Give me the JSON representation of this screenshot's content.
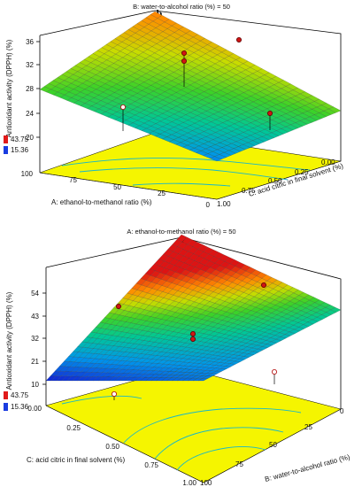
{
  "chart_data": [
    {
      "type": "surface3d",
      "panel_letter": "b",
      "title": "B: water-to-alcohol ratio (%) = 50",
      "zlabel": "Antioxidant activity (DPPH) (%)",
      "xlabel": "A: ethanol-to-methanol ratio (%)",
      "ylabel": "C: acid citric in final solvent (%)",
      "x_ticks": [
        "0",
        "25",
        "50",
        "75",
        "100"
      ],
      "y_ticks": [
        "0.00",
        "0.25",
        "0.50",
        "0.75",
        "1.00"
      ],
      "z_ticks": [
        "20",
        "24",
        "28",
        "32",
        "36"
      ],
      "zlim": [
        20,
        36
      ],
      "legend": {
        "high": "43.75",
        "low": "15.36",
        "high_color": "#e01a1a",
        "low_color": "#1a3ce0"
      },
      "surface_corners": {
        "A100_C0": 28.3,
        "A0_C0": 35.6,
        "A0_C1": 29.0,
        "A100_C1": 18.6
      },
      "design_points": [
        {
          "x": 25,
          "y": 0.25,
          "z": 35.2
        },
        {
          "x": 50,
          "y": 0.5,
          "z": 32.6
        },
        {
          "x": 50,
          "y": 0.5,
          "z": 33.8
        },
        {
          "x": 100,
          "y": 0.75,
          "z": 24.2
        },
        {
          "x": 0,
          "y": 0.5,
          "z": 26.6
        }
      ]
    },
    {
      "type": "surface3d",
      "panel_letter": "c",
      "title": "A: ethanol-to-methanol ratio (%) = 50",
      "zlabel": "Antioxidant activity (DPPH) (%)",
      "xlabel": "C: acid citric in final solvent (%)",
      "ylabel": "B: water-to-alcohol ratio (%)",
      "x_ticks": [
        "0.00",
        "0.25",
        "0.50",
        "0.75",
        "1.00"
      ],
      "y_ticks": [
        "100",
        "75",
        "50",
        "25",
        "0"
      ],
      "z_ticks": [
        "10",
        "21",
        "32",
        "43",
        "54"
      ],
      "zlim": [
        10,
        54
      ],
      "legend": {
        "high": "43.75",
        "low": "15.36",
        "high_color": "#e01a1a",
        "low_color": "#1a3ce0"
      },
      "surface_corners": {
        "C0_B0": 13.5,
        "C1_B0": 20.0,
        "C1_B100": 12.0,
        "C0_B100": 54.0
      },
      "design_points": [
        {
          "x": 0.25,
          "y": 50,
          "z": 40.0
        },
        {
          "x": 0.5,
          "y": 50,
          "z": 30.5
        },
        {
          "x": 0.5,
          "y": 50,
          "z": 32.0
        },
        {
          "x": 1.0,
          "y": 75,
          "z": 36.0
        },
        {
          "x": 0.0,
          "y": 25,
          "z": 14.0
        }
      ]
    }
  ]
}
